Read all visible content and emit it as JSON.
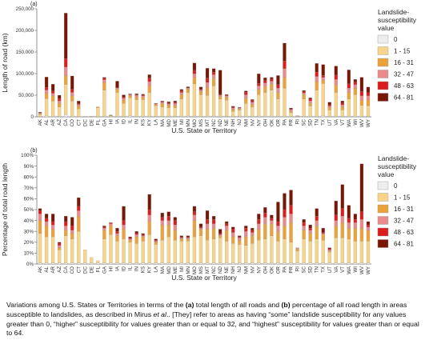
{
  "colors": {
    "0": "#ededed",
    "1-15": "#f7d48a",
    "16-31": "#eca23a",
    "32-47": "#ea8a8a",
    "48-63": "#dd1c1c",
    "64-81": "#7a1606"
  },
  "legend": {
    "title_lines": [
      "Landslide-",
      "susceptibility",
      "value"
    ],
    "entries": [
      "0",
      "1 - 15",
      "16 - 31",
      "32 - 47",
      "48 - 63",
      "64 - 81"
    ],
    "entry_keys": [
      "0",
      "1-15",
      "16-31",
      "32-47",
      "48-63",
      "64-81"
    ]
  },
  "caption": {
    "text_1": "Variations among U.S. States or Territories in terms of the ",
    "bold_a": "(a)",
    "text_2": " total length of all roads and ",
    "bold_b": "(b)",
    "text_3": " percentage of all road length in areas susceptible to landslides, as described in Mirus ",
    "italic": "et al",
    "text_4": ".. [They] refer to areas as having “some” landslide susceptibility for any values greater than 0, “higher” susceptibility for values greater than or equal to 32, and “highest” susceptibility for values greater than or equal to 64."
  },
  "chart_data": [
    {
      "type": "bar",
      "stacked": true,
      "panel_label": "(a)",
      "xlabel": "U.S. State or Territory",
      "ylabel": "Length of road (km)",
      "ylim": [
        0,
        250000
      ],
      "yticks": [
        0,
        50000,
        100000,
        150000,
        200000,
        250000
      ],
      "ytick_labels": [
        "0",
        "50,000",
        "100,000",
        "150,000",
        "200,000",
        "250,000"
      ],
      "categories": [
        "AK",
        "AL",
        "AR",
        "AZ",
        "CA",
        "CO",
        "CT",
        "DC",
        "DE",
        "FL",
        "GA",
        "HI",
        "IA",
        "ID",
        "IL",
        "IN",
        "KS",
        "KY",
        "LA",
        "MA",
        "MD",
        "ME",
        "MI",
        "MN",
        "MO",
        "MS",
        "MT",
        "NC",
        "ND",
        "NE",
        "NH",
        "NJ",
        "NM",
        "NV",
        "NY",
        "OH",
        "OK",
        "OR",
        "PA",
        "PR",
        "RI",
        "SC",
        "SD",
        "TN",
        "TX",
        "UT",
        "VA",
        "VT",
        "WA",
        "WI",
        "WV",
        "WY"
      ],
      "series": [
        {
          "name": "0",
          "values": [
            500,
            2000,
            1500,
            1000,
            5000,
            1500,
            500,
            300,
            300,
            1000,
            1500,
            200,
            1500,
            800,
            2000,
            1500,
            1500,
            1500,
            800,
            800,
            800,
            800,
            1500,
            1500,
            1500,
            1000,
            1500,
            1500,
            1000,
            800,
            500,
            700,
            1000,
            1000,
            1500,
            1500,
            1500,
            1500,
            1500,
            300,
            100,
            1000,
            1000,
            1500,
            2000,
            800,
            1500,
            800,
            1500,
            1500,
            1500,
            800
          ]
        },
        {
          "name": "1 - 15",
          "values": [
            5000,
            40000,
            35000,
            22000,
            70000,
            35000,
            18000,
            800,
            1200,
            20000,
            60000,
            2000,
            55000,
            30000,
            42000,
            38000,
            38000,
            55000,
            25000,
            22000,
            20000,
            20000,
            40000,
            55000,
            75000,
            50000,
            48000,
            70000,
            40000,
            38000,
            12000,
            15000,
            30000,
            22000,
            50000,
            55000,
            60000,
            40000,
            65000,
            9000,
            1300,
            40000,
            24000,
            60000,
            75000,
            15000,
            55000,
            15000,
            40000,
            50000,
            25000,
            25000
          ]
        },
        {
          "name": "16 - 31",
          "values": [
            2000,
            12000,
            12000,
            8000,
            20000,
            12000,
            6000,
            0,
            0,
            2000,
            18000,
            800,
            8000,
            8000,
            5000,
            6000,
            6000,
            15000,
            3000,
            8000,
            6000,
            6000,
            10000,
            8000,
            15000,
            8000,
            18000,
            18000,
            6000,
            7000,
            5000,
            3000,
            12000,
            6000,
            12000,
            14000,
            15000,
            15000,
            25000,
            4000,
            500,
            10000,
            7000,
            20000,
            8000,
            5000,
            18000,
            7000,
            15000,
            15000,
            12000,
            14000
          ]
        },
        {
          "name": "32 - 47",
          "values": [
            1500,
            8000,
            6000,
            6000,
            20000,
            8000,
            4000,
            0,
            0,
            0,
            6000,
            500,
            2000,
            4000,
            2000,
            4000,
            3000,
            10000,
            1500,
            3000,
            3000,
            4000,
            5000,
            2000,
            8000,
            3000,
            12000,
            8000,
            3000,
            3000,
            3000,
            1500,
            8000,
            5000,
            8000,
            8000,
            6000,
            10000,
            20000,
            3000,
            200,
            4000,
            5000,
            12000,
            6000,
            4000,
            12000,
            5000,
            10000,
            8000,
            10000,
            9000
          ]
        },
        {
          "name": "48 - 63",
          "values": [
            1000,
            6000,
            5000,
            5000,
            20000,
            7000,
            2000,
            0,
            0,
            0,
            4000,
            300,
            1000,
            3000,
            1000,
            2000,
            2000,
            8000,
            700,
            2000,
            2000,
            3000,
            4000,
            1000,
            8000,
            2000,
            10000,
            6000,
            2000,
            2000,
            2000,
            1000,
            6000,
            4000,
            6000,
            6000,
            5000,
            8000,
            18000,
            2000,
            100,
            3000,
            4000,
            10000,
            5000,
            3000,
            10000,
            4000,
            10000,
            6000,
            10000,
            7000
          ]
        },
        {
          "name": "64 - 81",
          "values": [
            1000,
            24000,
            16000,
            8000,
            105000,
            31000,
            6000,
            0,
            0,
            0,
            2000,
            200,
            15000,
            5000,
            1000,
            2000,
            2000,
            8000,
            500,
            1000,
            3000,
            3000,
            3000,
            2000,
            17000,
            5000,
            23000,
            8000,
            56000,
            1000,
            2000,
            800,
            3000,
            2000,
            22000,
            6000,
            4000,
            21000,
            41000,
            2000,
            0,
            3000,
            3000,
            20000,
            25000,
            6000,
            21000,
            5000,
            32000,
            6000,
            33000,
            13000
          ]
        }
      ]
    },
    {
      "type": "bar",
      "stacked": true,
      "panel_label": "(b)",
      "xlabel": "U.S. State or Territory",
      "ylabel": "Percentage of total road length",
      "ylim": [
        0,
        100
      ],
      "yticks": [
        0,
        10,
        20,
        30,
        40,
        50,
        60,
        70,
        80,
        90,
        100
      ],
      "ytick_labels": [
        "0%",
        "10%",
        "20%",
        "30%",
        "40%",
        "50%",
        "60%",
        "70%",
        "80%",
        "90%",
        "100%"
      ],
      "categories": [
        "AK",
        "AL",
        "AR",
        "AZ",
        "CA",
        "CO",
        "CT",
        "DC",
        "DE",
        "FL",
        "GA",
        "HI",
        "IA",
        "ID",
        "IL",
        "IN",
        "KS",
        "KY",
        "LA",
        "MA",
        "MD",
        "ME",
        "MI",
        "MN",
        "MO",
        "MS",
        "MT",
        "NC",
        "ND",
        "NE",
        "NH",
        "NJ",
        "NM",
        "NV",
        "NY",
        "OH",
        "OK",
        "OR",
        "PA",
        "PR",
        "RI",
        "SC",
        "SD",
        "TN",
        "TX",
        "UT",
        "VA",
        "VT",
        "WA",
        "WI",
        "WV",
        "WY"
      ],
      "series": [
        {
          "name": "0",
          "values": [
            1,
            1,
            1,
            1,
            1,
            1,
            1,
            1,
            1,
            1,
            1,
            1,
            1,
            1,
            1,
            1,
            1,
            1,
            1,
            1,
            1,
            1,
            1,
            1,
            1,
            1,
            1,
            1,
            1,
            1,
            1,
            1,
            1,
            1,
            1,
            1,
            1,
            1,
            1,
            1,
            1,
            1,
            1,
            1,
            1,
            1,
            1,
            1,
            1,
            1,
            1,
            1
          ]
        },
        {
          "name": "1 - 15",
          "values": [
            27,
            24,
            24,
            12,
            25,
            22,
            29,
            12,
            5,
            2,
            22,
            26,
            20,
            22,
            19,
            18,
            20,
            26,
            17,
            21,
            24,
            21,
            20,
            20,
            24,
            25,
            21,
            22,
            23,
            20,
            18,
            17,
            16,
            18,
            21,
            22,
            25,
            20,
            22,
            19,
            11,
            22,
            20,
            22,
            21,
            10,
            23,
            23,
            22,
            20,
            20,
            20
          ]
        },
        {
          "name": "16 - 31",
          "values": [
            12,
            10,
            7,
            2,
            5,
            5,
            14,
            0,
            0,
            0,
            8,
            8,
            5,
            9,
            2,
            6,
            4,
            12,
            2,
            14,
            11,
            9,
            2,
            2,
            15,
            6,
            10,
            10,
            2,
            10,
            6,
            4,
            8,
            7,
            10,
            14,
            11,
            9,
            12,
            18,
            2,
            8,
            7,
            12,
            5,
            1,
            11,
            14,
            10,
            12,
            12,
            10
          ]
        },
        {
          "name": "32 - 47",
          "values": [
            6,
            4,
            4,
            2,
            4,
            3,
            5,
            0,
            0,
            0,
            2,
            2,
            2,
            4,
            1,
            2,
            1,
            6,
            1,
            4,
            4,
            5,
            1,
            1,
            5,
            1,
            5,
            4,
            1,
            4,
            4,
            2,
            5,
            3,
            5,
            6,
            3,
            5,
            8,
            8,
            1,
            4,
            3,
            5,
            1,
            1,
            5,
            6,
            5,
            5,
            8,
            3
          ]
        },
        {
          "name": "48 - 63",
          "values": [
            3,
            3,
            3,
            2,
            4,
            4,
            4,
            0,
            0,
            0,
            1,
            1,
            2,
            4,
            1,
            1,
            1,
            5,
            1,
            3,
            4,
            4,
            1,
            1,
            3,
            1,
            4,
            4,
            1,
            2,
            3,
            1,
            3,
            2,
            4,
            4,
            2,
            4,
            7,
            8,
            0,
            3,
            2,
            4,
            1,
            1,
            5,
            7,
            4,
            3,
            7,
            2
          ]
        },
        {
          "name": "64 - 81",
          "values": [
            2,
            4,
            7,
            1,
            5,
            8,
            8,
            0,
            0,
            0,
            1,
            0,
            3,
            13,
            1,
            2,
            1,
            14,
            1,
            4,
            4,
            3,
            1,
            1,
            5,
            3,
            8,
            3,
            4,
            2,
            2,
            1,
            2,
            2,
            5,
            5,
            3,
            18,
            15,
            14,
            0,
            3,
            3,
            7,
            4,
            1,
            13,
            22,
            12,
            5,
            44,
            3
          ]
        }
      ]
    }
  ]
}
